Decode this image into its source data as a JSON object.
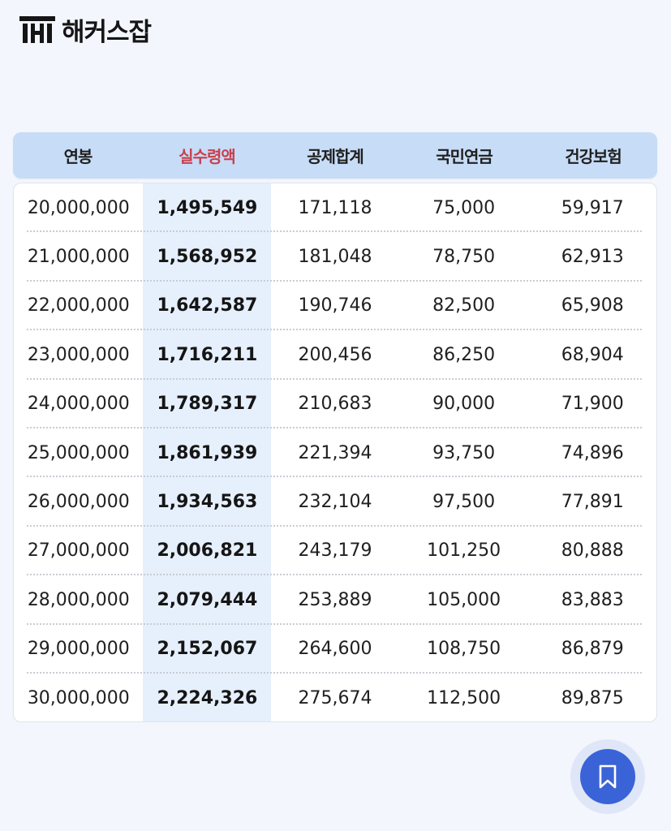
{
  "brand": {
    "name": "해커스잡",
    "logo_icon": "hackers-logo-icon"
  },
  "table": {
    "headers": [
      "연봉",
      "실수령액",
      "공제합계",
      "국민연금",
      "건강보험"
    ],
    "rows": [
      [
        "20,000,000",
        "1,495,549",
        "171,118",
        "75,000",
        "59,917"
      ],
      [
        "21,000,000",
        "1,568,952",
        "181,048",
        "78,750",
        "62,913"
      ],
      [
        "22,000,000",
        "1,642,587",
        "190,746",
        "82,500",
        "65,908"
      ],
      [
        "23,000,000",
        "1,716,211",
        "200,456",
        "86,250",
        "68,904"
      ],
      [
        "24,000,000",
        "1,789,317",
        "210,683",
        "90,000",
        "71,900"
      ],
      [
        "25,000,000",
        "1,861,939",
        "221,394",
        "93,750",
        "74,896"
      ],
      [
        "26,000,000",
        "1,934,563",
        "232,104",
        "97,500",
        "77,891"
      ],
      [
        "27,000,000",
        "2,006,821",
        "243,179",
        "101,250",
        "80,888"
      ],
      [
        "28,000,000",
        "2,079,444",
        "253,889",
        "105,000",
        "83,883"
      ],
      [
        "29,000,000",
        "2,152,067",
        "264,600",
        "108,750",
        "86,879"
      ],
      [
        "30,000,000",
        "2,224,326",
        "275,674",
        "112,500",
        "89,875"
      ]
    ]
  },
  "colors": {
    "header_bg": "#c7dcf6",
    "accent_header": "#c8404e",
    "highlight_column": "#e6effc",
    "bookmark_button": "#3b63d8"
  },
  "bookmark": {
    "icon": "bookmark-icon"
  }
}
